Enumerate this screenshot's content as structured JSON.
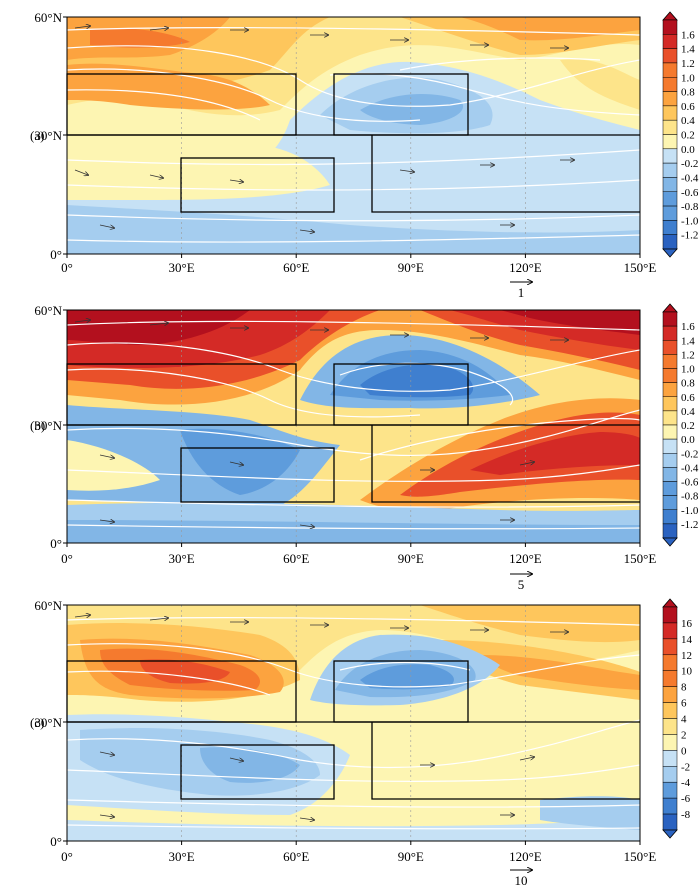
{
  "panels": [
    {
      "label": "(a)",
      "colorbar_labels": [
        "1.6",
        "1.4",
        "1.2",
        "1.0",
        "0.8",
        "0.6",
        "0.4",
        "0.2",
        "0.0",
        "-0.2",
        "-0.4",
        "-0.6",
        "-0.8",
        "-1.0",
        "-1.2"
      ],
      "reference_vector_label": "1",
      "intensity": 0.55
    },
    {
      "label": "(b)",
      "colorbar_labels": [
        "1.6",
        "1.4",
        "1.2",
        "1.0",
        "0.8",
        "0.6",
        "0.4",
        "0.2",
        "0.0",
        "-0.2",
        "-0.4",
        "-0.6",
        "-0.8",
        "-1.0",
        "-1.2"
      ],
      "reference_vector_label": "5",
      "intensity": 1.0
    },
    {
      "label": "(c)",
      "colorbar_labels": [
        "16",
        "14",
        "12",
        "10",
        "8",
        "6",
        "4",
        "2",
        "0",
        "-2",
        "-4",
        "-6",
        "-8"
      ],
      "reference_vector_label": "10",
      "intensity": 0.7
    }
  ],
  "x_tick_labels": [
    "0°",
    "30°E",
    "60°E",
    "90°E",
    "120°E",
    "150°E"
  ],
  "y_tick_labels": [
    "0°",
    "30°N",
    "60°N"
  ],
  "colors": {
    "positive": [
      "#fdf5b2",
      "#fde48a",
      "#fec65c",
      "#fca33f",
      "#f57a2e",
      "#e9502a",
      "#d42a26",
      "#b3101e"
    ],
    "negative": [
      "#c6e1f5",
      "#a5cdef",
      "#82b6e6",
      "#5e9cdc",
      "#3f7fcf",
      "#2a62c0"
    ],
    "frame": "#000000",
    "streamline": "#ffffff",
    "vector": "#333333"
  }
}
